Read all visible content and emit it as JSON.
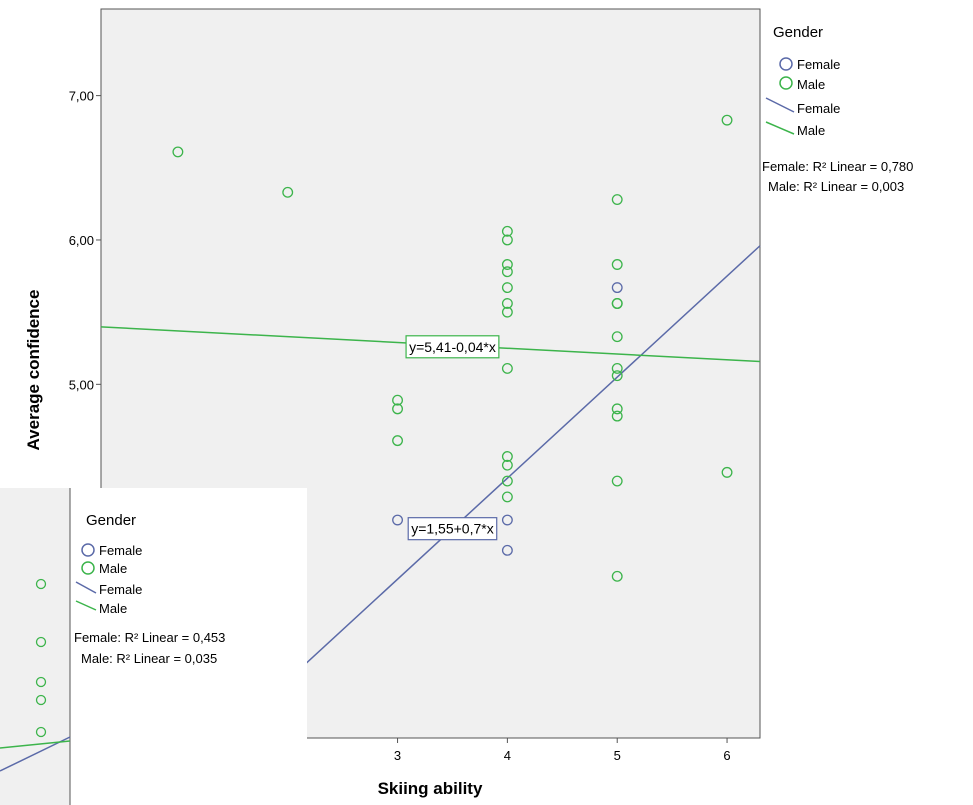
{
  "chart_data": [
    {
      "type": "scatter",
      "xlabel": "Skiing ability",
      "ylabel": "Average confidence",
      "xlim": [
        0.3,
        6.3
      ],
      "ylim": [
        2.55,
        7.6
      ],
      "x_ticks": [
        3,
        4,
        5,
        6
      ],
      "x_tick_labels": [
        "3",
        "4",
        "5",
        "6"
      ],
      "y_ticks": [
        4.0,
        5.0,
        6.0,
        7.0
      ],
      "y_tick_labels": [
        "4,00",
        "5,00",
        "6,00",
        "7,00"
      ],
      "grid": false,
      "legend": {
        "title": "Gender",
        "placement": "right",
        "marker_labels": [
          "Female",
          "Male"
        ],
        "line_labels": [
          "Female",
          "Male"
        ]
      },
      "colors": {
        "Female": "#5b6aa8",
        "Male": "#3cb44b",
        "plot_bg": "#f0f0f0"
      },
      "series": [
        {
          "name": "Female",
          "points": [
            [
              3,
              4.06
            ],
            [
              4,
              4.06
            ],
            [
              4,
              3.85
            ],
            [
              5,
              5.67
            ]
          ]
        },
        {
          "name": "Male",
          "points": [
            [
              1,
              6.61
            ],
            [
              2,
              6.33
            ],
            [
              3,
              4.89
            ],
            [
              3,
              4.83
            ],
            [
              3,
              4.61
            ],
            [
              4,
              6.06
            ],
            [
              4,
              6.0
            ],
            [
              4,
              5.83
            ],
            [
              4,
              5.78
            ],
            [
              4,
              5.67
            ],
            [
              4,
              5.56
            ],
            [
              4,
              5.5
            ],
            [
              4,
              5.11
            ],
            [
              4,
              4.5
            ],
            [
              4,
              4.44
            ],
            [
              4,
              4.33
            ],
            [
              4,
              4.22
            ],
            [
              5,
              6.28
            ],
            [
              5,
              5.83
            ],
            [
              5,
              5.56
            ],
            [
              5,
              5.56
            ],
            [
              5,
              5.33
            ],
            [
              5,
              5.11
            ],
            [
              5,
              5.06
            ],
            [
              5,
              4.83
            ],
            [
              5,
              4.78
            ],
            [
              5,
              4.33
            ],
            [
              5,
              3.67
            ],
            [
              6,
              6.83
            ],
            [
              6,
              4.39
            ]
          ]
        }
      ],
      "fit_lines": [
        {
          "name": "Female",
          "intercept": 1.55,
          "slope": 0.7,
          "label": "y=1,55+0,7*x",
          "label_at": [
            3.5,
            4.0
          ]
        },
        {
          "name": "Male",
          "intercept": 5.41,
          "slope": -0.04,
          "label": "y=5,41-0,04*x",
          "label_at": [
            3.5,
            5.26
          ]
        }
      ],
      "r_squared": [
        "Female: R² Linear = 0,780",
        "Male: R² Linear = 0,003"
      ]
    },
    {
      "type": "scatter",
      "partial": true,
      "legend": {
        "title": "Gender",
        "marker_labels": [
          "Female",
          "Male"
        ],
        "line_labels": [
          "Female",
          "Male"
        ]
      },
      "r_squared": [
        "Female: R² Linear = 0,453",
        "Male: R² Linear = 0,035"
      ]
    }
  ]
}
